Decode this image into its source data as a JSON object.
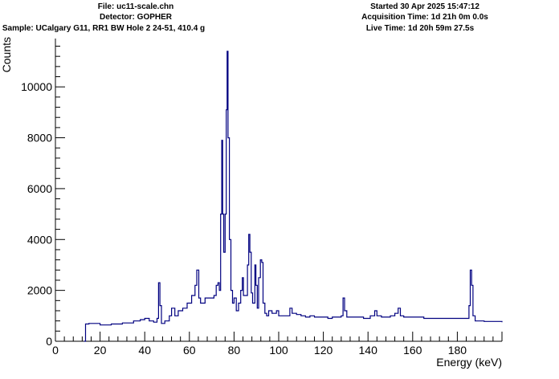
{
  "header": {
    "file": "File: uc11-scale.chn",
    "detector": "Detector: GOPHER",
    "sample": "Sample: UCalgary G11, RR1 BW Hole 2 24-51, 410.4 g",
    "started": "Started 30 Apr 2025 15:47:12",
    "acquisition_time": "Acquisition Time: 1d 21h 0m 0.0s",
    "live_time": "Live Time: 1d 20h 59m 27.5s"
  },
  "chart_data": {
    "type": "line",
    "title": "",
    "xlabel": "Energy (keV)",
    "ylabel": "Counts",
    "xlim": [
      0,
      200
    ],
    "ylim": [
      0,
      11900
    ],
    "x_ticks": [
      0,
      20,
      40,
      60,
      80,
      100,
      120,
      140,
      160,
      180
    ],
    "y_ticks": [
      0,
      2000,
      4000,
      6000,
      8000,
      10000
    ],
    "line_color": "#000080",
    "grid": false,
    "legend": "none",
    "series": [
      {
        "x": [
          12.8,
          13.5,
          15,
          20,
          25,
          30,
          35,
          38,
          40,
          42,
          44,
          45.5,
          46.2,
          46.8,
          47.5,
          49,
          51,
          52,
          53.5,
          55,
          57,
          59,
          61,
          62.5,
          63.3,
          64.2,
          65,
          67,
          69,
          71,
          72,
          72.8,
          73.4,
          74,
          74.5,
          74.9,
          75.4,
          76,
          76.5,
          76.9,
          77.3,
          77.9,
          78.6,
          79.3,
          80,
          81,
          82,
          83,
          83.7,
          84.2,
          85,
          86,
          86.6,
          87.1,
          87.7,
          88.3,
          89.3,
          89.8,
          90.4,
          91,
          91.8,
          92.4,
          93,
          93.8,
          94.6,
          95.5,
          97,
          99,
          100,
          102,
          104,
          105,
          106,
          108,
          110,
          112,
          114,
          116,
          118,
          120,
          122,
          124,
          126,
          128,
          128.8,
          129.5,
          130.5,
          132,
          135,
          138,
          141,
          143,
          144,
          146,
          150,
          152,
          153.5,
          154.5,
          156,
          160,
          165,
          170,
          175,
          180,
          183,
          185.2,
          185.8,
          186.4,
          187,
          188,
          192,
          196,
          200
        ],
        "values": [
          0,
          680,
          700,
          640,
          680,
          720,
          800,
          850,
          900,
          800,
          750,
          900,
          2300,
          1400,
          700,
          800,
          1000,
          1300,
          1000,
          1200,
          1300,
          1500,
          1800,
          2200,
          2800,
          1700,
          1500,
          1700,
          1700,
          1800,
          2200,
          2300,
          2000,
          5000,
          7900,
          5000,
          3500,
          5000,
          9100,
          11400,
          8000,
          4000,
          2000,
          1500,
          1700,
          1200,
          1500,
          2000,
          2500,
          1800,
          1800,
          3000,
          4200,
          3500,
          1900,
          1500,
          3000,
          2200,
          1300,
          2500,
          3200,
          3100,
          1500,
          1100,
          1000,
          1200,
          1100,
          1200,
          1000,
          1000,
          1000,
          1300,
          1100,
          1050,
          1000,
          950,
          1000,
          950,
          950,
          950,
          900,
          950,
          950,
          1000,
          1700,
          1200,
          950,
          950,
          950,
          900,
          1000,
          1200,
          1000,
          950,
          1000,
          1100,
          1300,
          1000,
          950,
          950,
          900,
          900,
          900,
          900,
          900,
          1400,
          2800,
          2200,
          1000,
          800,
          780,
          780,
          750
        ]
      }
    ]
  }
}
